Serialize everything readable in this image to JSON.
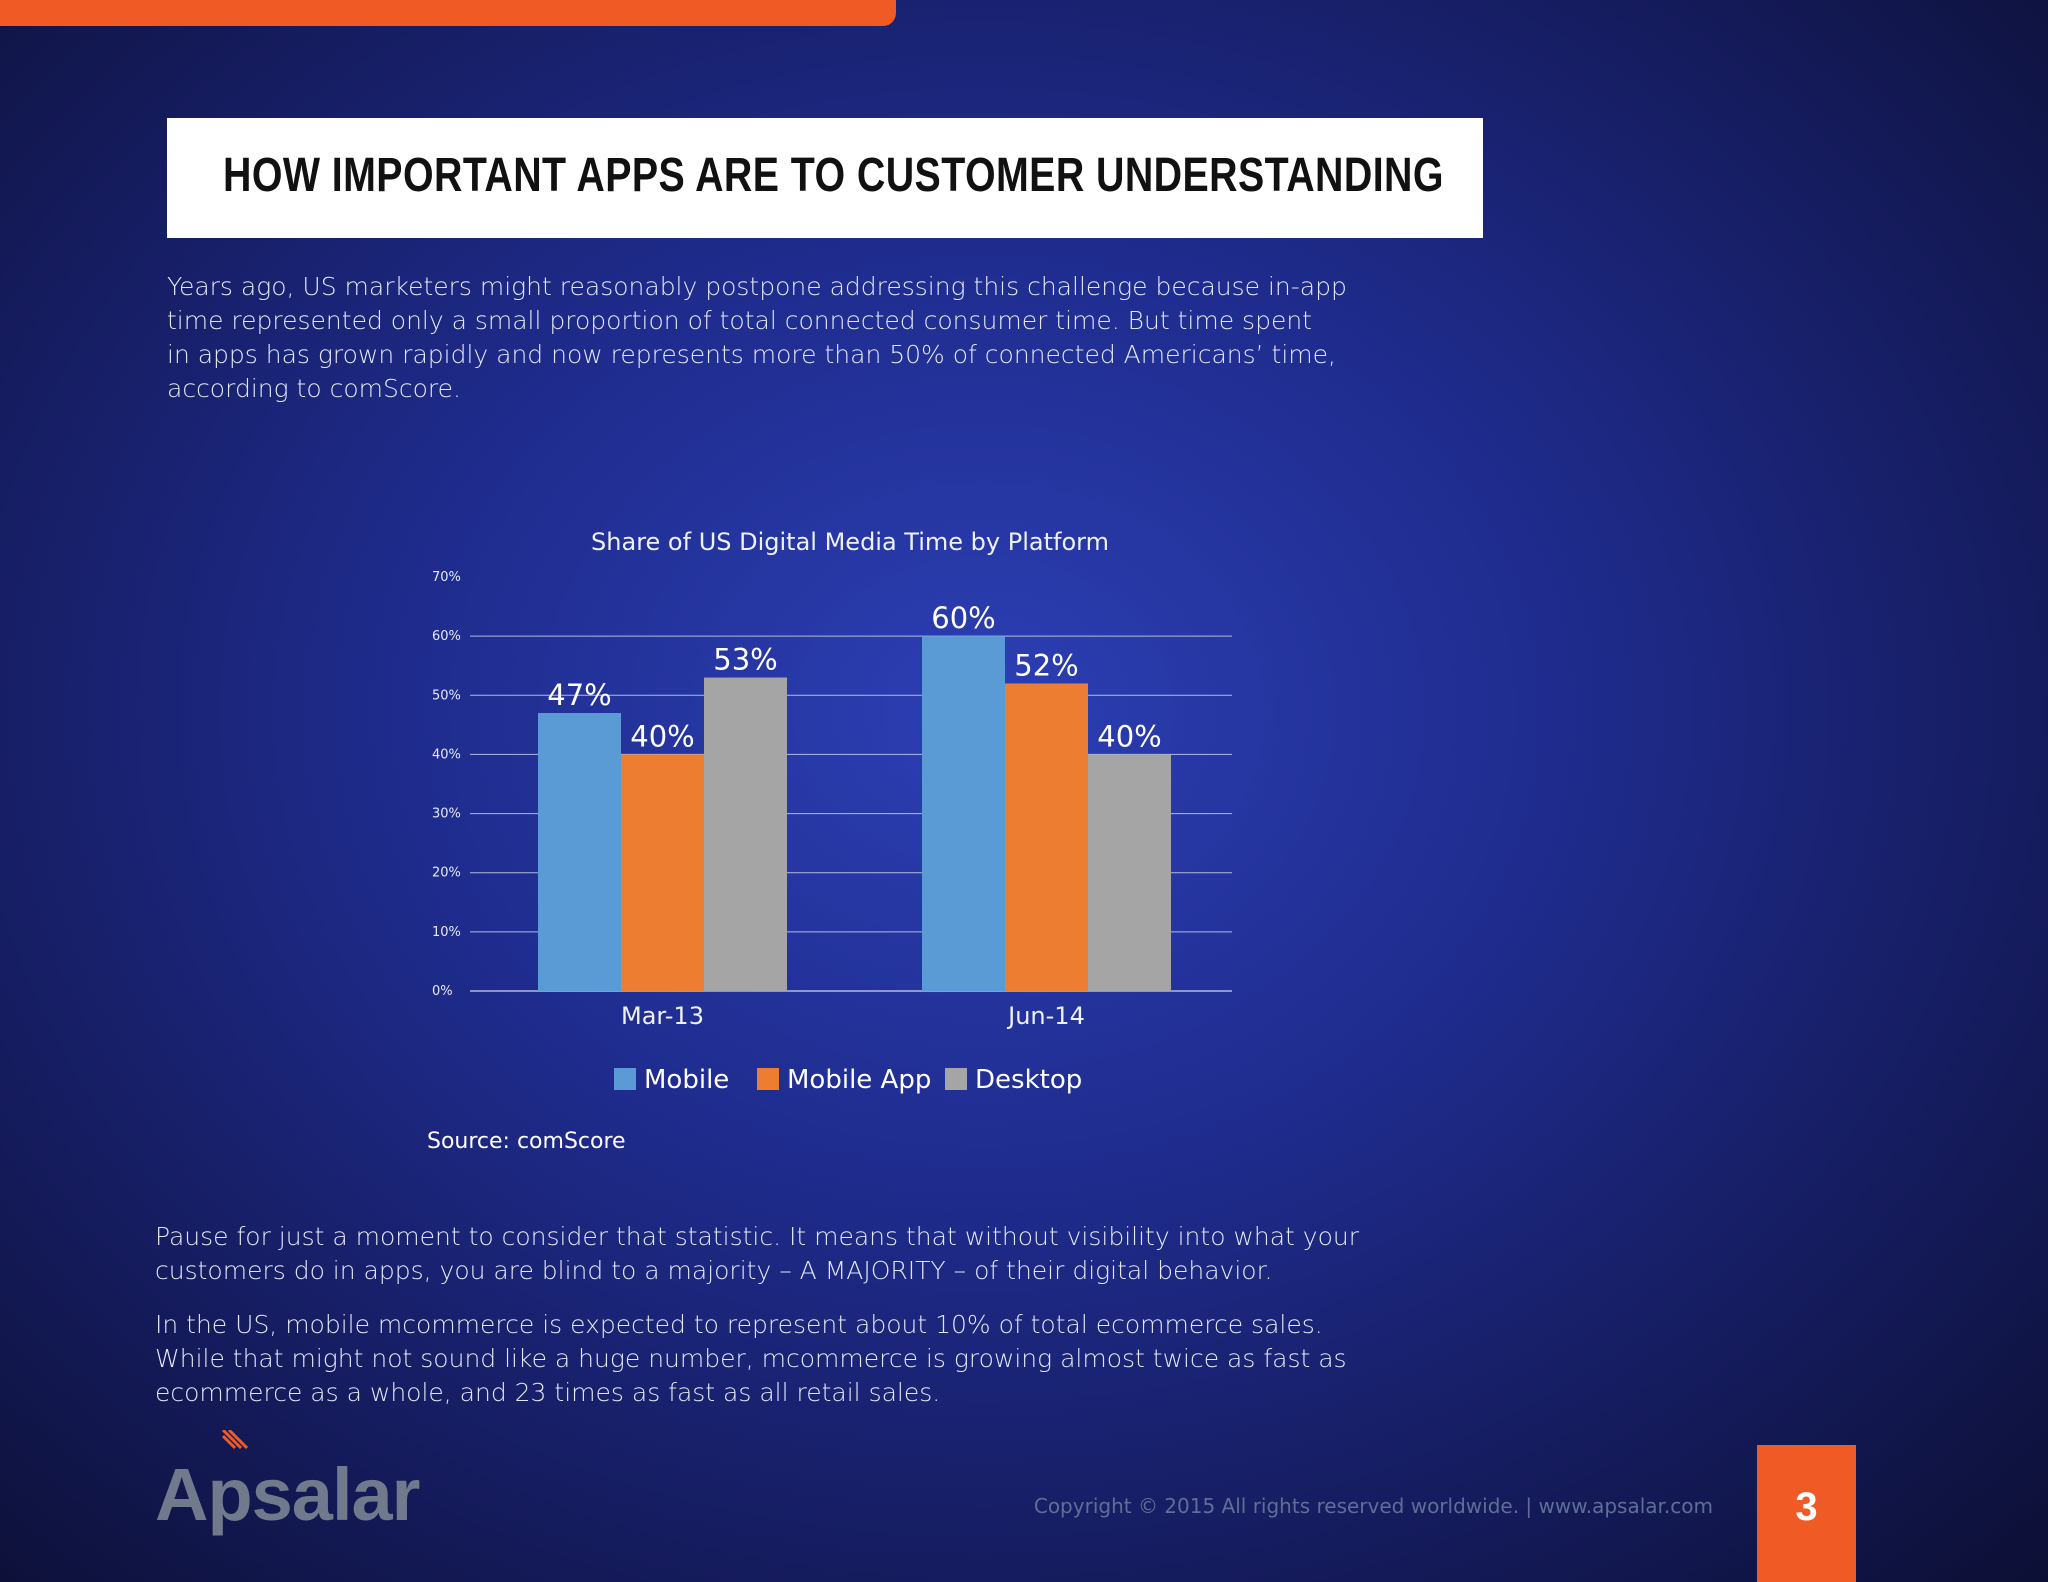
{
  "header": {
    "title": "HOW IMPORTANT APPS ARE TO CUSTOMER UNDERSTANDING"
  },
  "body": {
    "paragraph_1": "Years ago, US marketers might reasonably postpone addressing this challenge because in-app\ntime represented only a small proportion of total connected consumer time. But time spent\nin apps has grown rapidly and now represents more than 50% of connected Americans’ time,\naccording to comScore.",
    "paragraph_2": "Pause for just a moment to consider that statistic. It means that without visibility into what your\ncustomers do in apps, you are blind to a majority – A MAJORITY – of their digital behavior.",
    "paragraph_3": "In the US, mobile mcommerce is expected to represent about 10% of total ecommerce sales.\nWhile that might not sound like a huge number, mcommerce is growing almost twice as fast as\necommerce as a whole, and 23 times as fast as all retail sales."
  },
  "chart_data": {
    "type": "bar",
    "title": "Share of US Digital Media Time by Platform",
    "categories": [
      "Mar-13",
      "Jun-14"
    ],
    "series": [
      {
        "name": "Mobile",
        "values": [
          47,
          60
        ],
        "labels": [
          "47%",
          "60%"
        ],
        "color": "#5b9bd5"
      },
      {
        "name": "Mobile App",
        "values": [
          40,
          52
        ],
        "labels": [
          "40%",
          "52%"
        ],
        "color": "#ed7d31"
      },
      {
        "name": "Desktop",
        "values": [
          53,
          40
        ],
        "labels": [
          "53%",
          "40%"
        ],
        "color": "#a5a5a5"
      }
    ],
    "yticks": [
      0,
      10,
      20,
      30,
      40,
      50,
      60,
      70
    ],
    "ytick_labels": [
      "0%",
      "10%",
      "20%",
      "30%",
      "40%",
      "50%",
      "60%",
      "70%"
    ],
    "ylim": [
      0,
      70
    ],
    "grid": true,
    "legend_position": "bottom",
    "source": "Source: comScore"
  },
  "footer": {
    "logo_text": "Apsalar",
    "copyright": "Copyright © 2015 All rights reserved worldwide. | www.apsalar.com",
    "page_number": "3"
  },
  "colors": {
    "accent": "#f05a24",
    "background": "#1f2c8e"
  }
}
